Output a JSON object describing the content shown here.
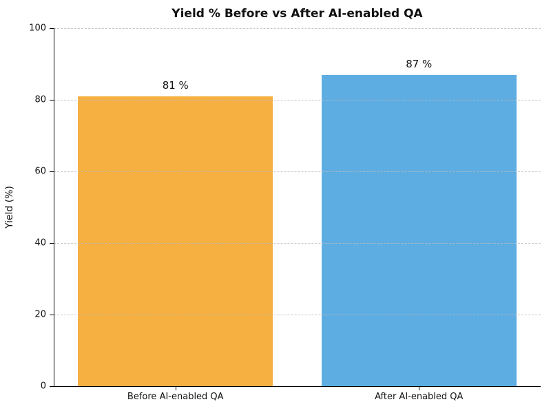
{
  "chart_data": {
    "type": "bar",
    "title": "Yield % Before vs After AI-enabled QA",
    "categories": [
      "Before AI-enabled QA",
      "After AI-enabled QA"
    ],
    "values": [
      81,
      87
    ],
    "value_labels": [
      "81 %",
      "87 %"
    ],
    "bar_colors": [
      "#F5B041",
      "#5DADE2"
    ],
    "xlabel": "",
    "ylabel": "Yield (%)",
    "ylim": [
      0,
      100
    ],
    "yticks": [
      0,
      20,
      40,
      60,
      80,
      100
    ],
    "grid": "horizontal-dashed-over-bars",
    "legend": "none"
  }
}
